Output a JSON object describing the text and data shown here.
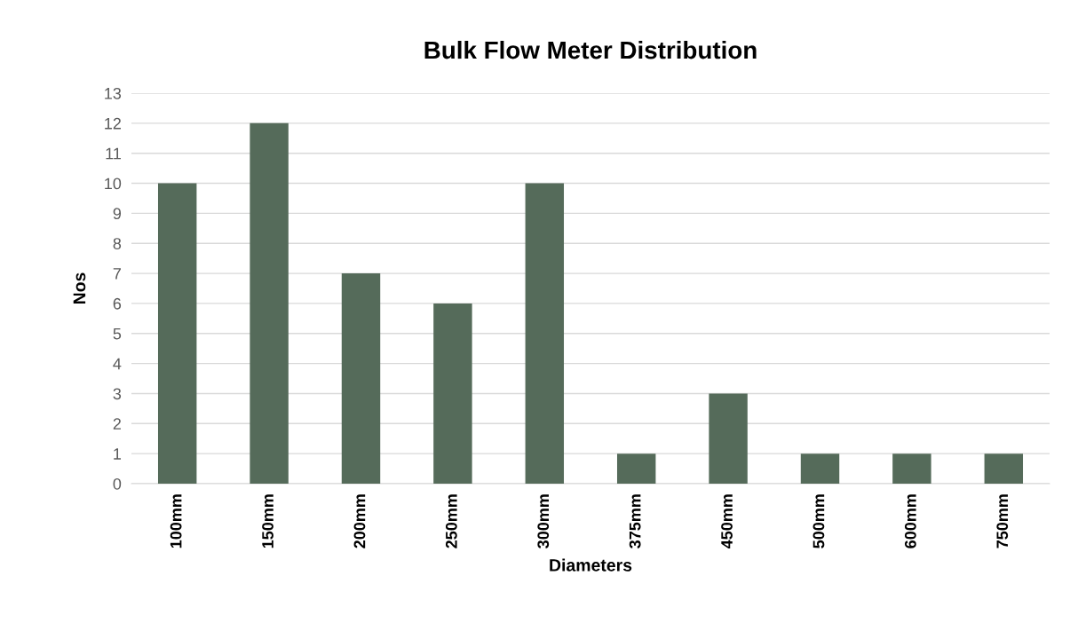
{
  "chart_data": {
    "type": "bar",
    "title": "Bulk Flow Meter Distribution",
    "xlabel": "Diameters",
    "ylabel": "Nos",
    "categories": [
      "100mm",
      "150mm",
      "200mm",
      "250mm",
      "300mm",
      "375mm",
      "450mm",
      "500mm",
      "600mm",
      "750mm"
    ],
    "values": [
      10,
      12,
      7,
      6,
      10,
      1,
      3,
      1,
      1,
      1
    ],
    "color": "#556b5a",
    "ylim": [
      0,
      13
    ],
    "yticks": [
      0,
      1,
      2,
      3,
      4,
      5,
      6,
      7,
      8,
      9,
      10,
      11,
      12,
      13
    ],
    "grid": "y",
    "legend": false
  }
}
